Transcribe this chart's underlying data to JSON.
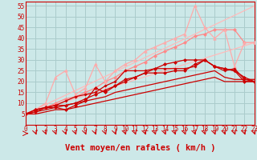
{
  "xlabel": "Vent moyen/en rafales ( km/h )",
  "background_color": "#cce8e8",
  "grid_color": "#aacccc",
  "xlim": [
    0,
    23
  ],
  "ylim": [
    0,
    57
  ],
  "yticks": [
    0,
    5,
    10,
    15,
    20,
    25,
    30,
    35,
    40,
    45,
    50,
    55
  ],
  "xticks": [
    0,
    1,
    2,
    3,
    4,
    5,
    6,
    7,
    8,
    9,
    10,
    11,
    12,
    13,
    14,
    15,
    16,
    17,
    18,
    19,
    20,
    21,
    22,
    23
  ],
  "series": [
    {
      "x": [
        0,
        23
      ],
      "y": [
        5,
        38
      ],
      "color": "#ffbbbb",
      "marker": null,
      "markersize": 0,
      "linewidth": 0.9,
      "linestyle": "-"
    },
    {
      "x": [
        0,
        23
      ],
      "y": [
        5,
        55
      ],
      "color": "#ffbbbb",
      "marker": null,
      "markersize": 0,
      "linewidth": 0.9,
      "linestyle": "-"
    },
    {
      "x": [
        0,
        1,
        2,
        3,
        4,
        5,
        6,
        7,
        8,
        9,
        10,
        11,
        12,
        13,
        14,
        15,
        16,
        17,
        18,
        19,
        20,
        21,
        22,
        23
      ],
      "y": [
        5,
        6,
        8,
        10,
        12,
        13,
        15,
        17,
        20,
        22,
        25,
        27,
        29,
        32,
        34,
        36,
        38,
        41,
        42,
        44,
        44,
        44,
        38,
        38
      ],
      "color": "#ff8888",
      "marker": "D",
      "markersize": 2.0,
      "linewidth": 0.9,
      "linestyle": "-"
    },
    {
      "x": [
        0,
        1,
        2,
        3,
        4,
        5,
        6,
        7,
        8,
        9,
        10,
        11,
        12,
        13,
        14,
        15,
        16,
        17,
        18,
        19,
        20,
        21,
        22,
        23
      ],
      "y": [
        5,
        7,
        10,
        22,
        25,
        14,
        17,
        28,
        20,
        25,
        28,
        30,
        34,
        36,
        38,
        40,
        42,
        55,
        45,
        40,
        44,
        27,
        38,
        38
      ],
      "color": "#ffaaaa",
      "marker": "^",
      "markersize": 2.5,
      "linewidth": 0.9,
      "linestyle": "-"
    },
    {
      "x": [
        0,
        1,
        2,
        3,
        4,
        5,
        6,
        7,
        8,
        9,
        10,
        11,
        12,
        13,
        14,
        15,
        16,
        17,
        18,
        19,
        20,
        21,
        22,
        23
      ],
      "y": [
        5,
        5,
        6,
        7,
        7,
        8,
        9,
        10,
        11,
        12,
        13,
        14,
        15,
        16,
        17,
        18,
        19,
        20,
        21,
        22,
        20,
        20,
        20,
        20
      ],
      "color": "#cc0000",
      "marker": null,
      "markersize": 0,
      "linewidth": 0.9,
      "linestyle": "-"
    },
    {
      "x": [
        0,
        1,
        2,
        3,
        4,
        5,
        6,
        7,
        8,
        9,
        10,
        11,
        12,
        13,
        14,
        15,
        16,
        17,
        18,
        19,
        20,
        21,
        22,
        23
      ],
      "y": [
        5,
        6,
        7,
        8,
        9,
        10,
        11,
        12,
        13,
        15,
        16,
        17,
        18,
        19,
        20,
        21,
        22,
        23,
        24,
        25,
        22,
        21,
        21,
        21
      ],
      "color": "#cc0000",
      "marker": null,
      "markersize": 0,
      "linewidth": 0.9,
      "linestyle": "-"
    },
    {
      "x": [
        0,
        1,
        2,
        3,
        4,
        5,
        6,
        7,
        8,
        9,
        10,
        11,
        12,
        13,
        14,
        15,
        16,
        17,
        18,
        19,
        20,
        21,
        22,
        23
      ],
      "y": [
        5,
        6,
        8,
        9,
        11,
        13,
        14,
        15,
        18,
        20,
        25,
        25,
        25,
        26,
        26,
        26,
        26,
        27,
        30,
        27,
        25,
        26,
        21,
        20
      ],
      "color": "#cc0000",
      "marker": "P",
      "markersize": 2.0,
      "linewidth": 0.9,
      "linestyle": "-"
    },
    {
      "x": [
        0,
        1,
        2,
        3,
        4,
        5,
        6,
        7,
        8,
        9,
        10,
        11,
        12,
        13,
        14,
        15,
        16,
        17,
        18,
        19,
        20,
        21,
        22,
        23
      ],
      "y": [
        5,
        7,
        8,
        9,
        9,
        10,
        12,
        14,
        16,
        18,
        20,
        22,
        24,
        26,
        28,
        29,
        30,
        30,
        30,
        27,
        26,
        25,
        22,
        20
      ],
      "color": "#cc0000",
      "marker": "D",
      "markersize": 2.0,
      "linewidth": 0.9,
      "linestyle": "-"
    },
    {
      "x": [
        0,
        1,
        2,
        3,
        4,
        5,
        6,
        7,
        8,
        9,
        10,
        11,
        12,
        13,
        14,
        15,
        16,
        17,
        18,
        19,
        20,
        21,
        22,
        23
      ],
      "y": [
        5,
        7,
        8,
        8,
        7,
        9,
        11,
        17,
        15,
        18,
        21,
        22,
        24,
        24,
        24,
        25,
        25,
        28,
        30,
        27,
        26,
        25,
        20,
        20
      ],
      "color": "#cc0000",
      "marker": "D",
      "markersize": 2.0,
      "linewidth": 0.9,
      "linestyle": "-"
    }
  ],
  "xlabel_color": "#cc0000",
  "xlabel_fontsize": 7.5,
  "tick_fontsize": 5.5
}
